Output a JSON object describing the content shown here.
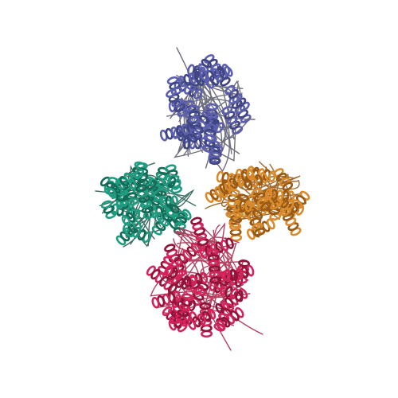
{
  "image": {
    "kind": "protein ribbon cartoon",
    "background": "#ffffff",
    "chains": [
      {
        "name": "chain-blue",
        "color": "#5b5fae",
        "shade": "#3f4483",
        "coil": "#6e6e7e"
      },
      {
        "name": "chain-teal",
        "color": "#1f9c80",
        "shade": "#126b57",
        "coil": "#3d6e63"
      },
      {
        "name": "chain-orange",
        "color": "#d98a2b",
        "shade": "#9b5a13",
        "coil": "#a06a30"
      },
      {
        "name": "chain-crimson",
        "color": "#d2235c",
        "shade": "#911438",
        "coil": "#b3405f"
      }
    ]
  }
}
